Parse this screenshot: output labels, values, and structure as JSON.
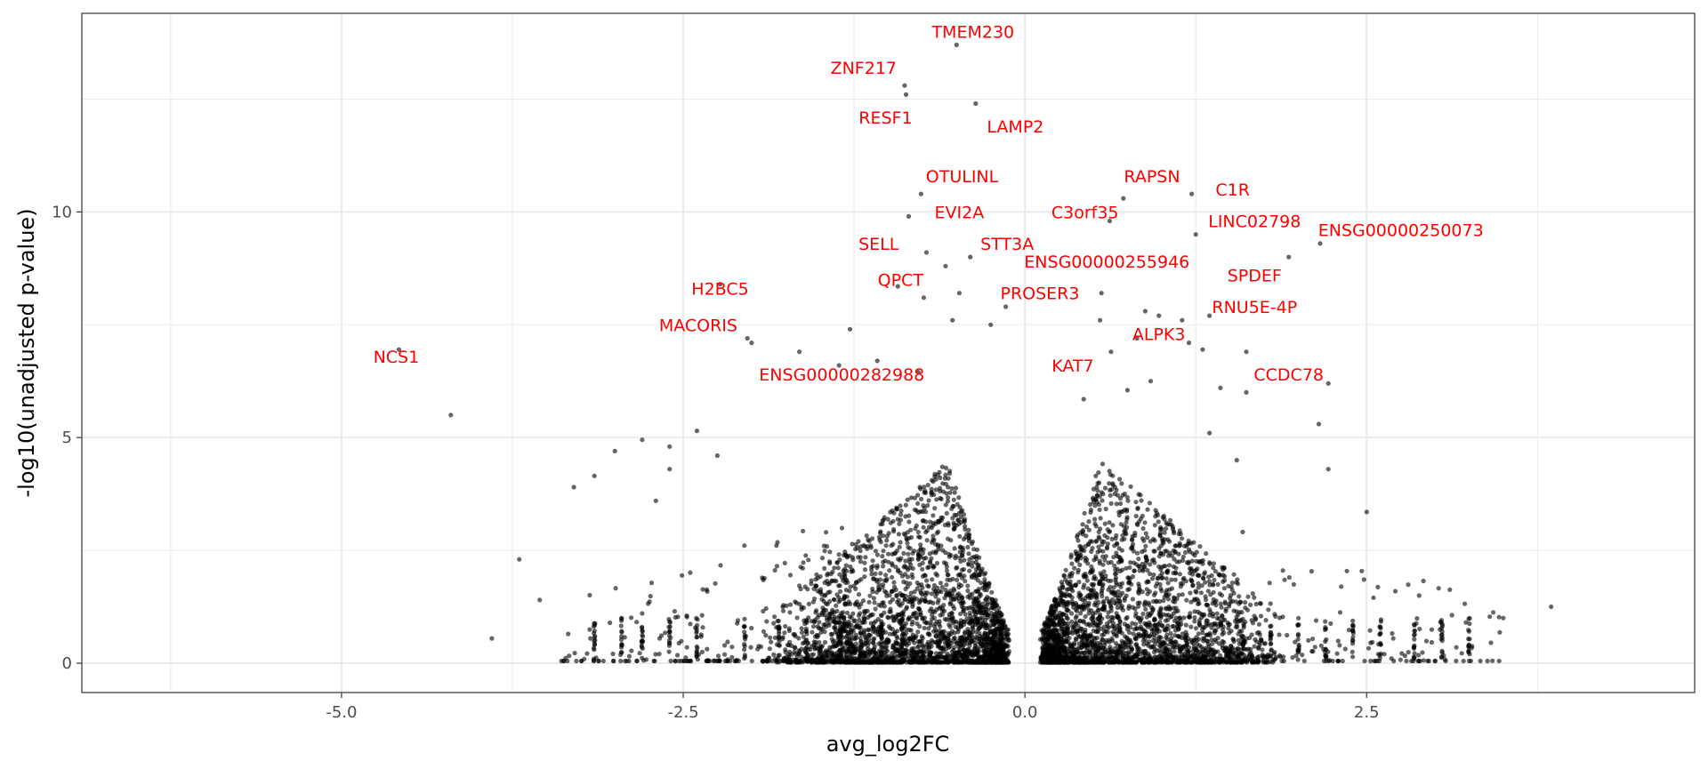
{
  "chart_data": {
    "type": "scatter",
    "title": "",
    "xlabel": "avg_log2FC",
    "ylabel": "-log10(unadjusted p-value)",
    "xlim": [
      -6.9,
      4.9
    ],
    "ylim": [
      -0.65,
      14.4
    ],
    "x_major_ticks": [
      -5.0,
      -2.5,
      0.0,
      2.5
    ],
    "x_tick_labels": [
      "-5.0",
      "-2.5",
      "0.0",
      "2.5"
    ],
    "x_minor_ticks": [
      -6.25,
      -3.75,
      -1.25,
      1.25,
      3.75
    ],
    "y_major_ticks": [
      0,
      5,
      10
    ],
    "y_tick_labels": [
      "0",
      "5",
      "10"
    ],
    "y_minor_ticks": [
      2.5,
      7.5,
      12.5
    ],
    "grid": true,
    "legend": "none",
    "colors": {
      "points": "#000000",
      "labels": "#ff0000",
      "grid": "#ebebeb",
      "panel_border": "#333333"
    },
    "point_opacity": 0.6,
    "labeled_genes": [
      {
        "gene": "TMEM230",
        "x": -0.5,
        "y": 13.7,
        "label_x": -0.38,
        "label_y": 14.0
      },
      {
        "gene": "ZNF217",
        "x": -0.88,
        "y": 12.8,
        "label_x": -1.18,
        "label_y": 13.2
      },
      {
        "gene": "RESF1",
        "x": -0.87,
        "y": 12.6,
        "label_x": -1.02,
        "label_y": 12.1
      },
      {
        "gene": "LAMP2",
        "x": -0.36,
        "y": 12.4,
        "label_x": -0.07,
        "label_y": 11.9
      },
      {
        "gene": "OTULINL",
        "x": -0.76,
        "y": 10.4,
        "label_x": -0.46,
        "label_y": 10.8
      },
      {
        "gene": "RAPSN",
        "x": 0.72,
        "y": 10.3,
        "label_x": 0.93,
        "label_y": 10.8
      },
      {
        "gene": "C1R",
        "x": 1.22,
        "y": 10.4,
        "label_x": 1.52,
        "label_y": 10.5
      },
      {
        "gene": "EVI2A",
        "x": -0.85,
        "y": 9.9,
        "label_x": -0.48,
        "label_y": 10.0
      },
      {
        "gene": "C3orf35",
        "x": 0.62,
        "y": 9.8,
        "label_x": 0.44,
        "label_y": 10.0
      },
      {
        "gene": "LINC02798",
        "x": 1.25,
        "y": 9.5,
        "label_x": 1.68,
        "label_y": 9.8
      },
      {
        "gene": "ENSG00000250073",
        "x": 2.16,
        "y": 9.3,
        "label_x": 2.75,
        "label_y": 9.6
      },
      {
        "gene": "SELL",
        "x": -0.72,
        "y": 9.1,
        "label_x": -1.07,
        "label_y": 9.3
      },
      {
        "gene": "STT3A",
        "x": -0.4,
        "y": 9.0,
        "label_x": -0.13,
        "label_y": 9.3
      },
      {
        "gene": "ENSG00000255946",
        "x": 0.56,
        "y": 8.2,
        "label_x": 0.6,
        "label_y": 8.9
      },
      {
        "gene": "SPDEF",
        "x": 1.93,
        "y": 9.0,
        "label_x": 1.68,
        "label_y": 8.6
      },
      {
        "gene": "QPCT",
        "x": -0.74,
        "y": 8.1,
        "label_x": -0.91,
        "label_y": 8.5
      },
      {
        "gene": "H2BC5",
        "x": -2.23,
        "y": 8.4,
        "label_x": -2.23,
        "label_y": 8.3
      },
      {
        "gene": "PROSER3",
        "x": -0.14,
        "y": 7.9,
        "label_x": 0.11,
        "label_y": 8.2
      },
      {
        "gene": "RNU5E-4P",
        "x": 1.35,
        "y": 7.7,
        "label_x": 1.68,
        "label_y": 7.9
      },
      {
        "gene": "MACORIS",
        "x": -2.03,
        "y": 7.2,
        "label_x": -2.39,
        "label_y": 7.5
      },
      {
        "gene": "ALPK3",
        "x": 0.82,
        "y": 7.2,
        "label_x": 0.98,
        "label_y": 7.3
      },
      {
        "gene": "NCS1",
        "x": -4.58,
        "y": 6.95,
        "label_x": -4.6,
        "label_y": 6.8
      },
      {
        "gene": "KAT7",
        "x": 0.63,
        "y": 6.9,
        "label_x": 0.35,
        "label_y": 6.6
      },
      {
        "gene": "CCDC78",
        "x": 1.62,
        "y": 6.9,
        "label_x": 1.93,
        "label_y": 6.4
      },
      {
        "gene": "ENSG00000282988",
        "x": -1.36,
        "y": 6.6,
        "label_x": -1.34,
        "label_y": 6.4
      }
    ],
    "outlier_points": [
      {
        "x": -4.2,
        "y": 5.5
      },
      {
        "x": -2.0,
        "y": 7.1
      },
      {
        "x": -1.28,
        "y": 7.4
      },
      {
        "x": -1.65,
        "y": 6.9
      },
      {
        "x": -0.93,
        "y": 8.35
      },
      {
        "x": -0.58,
        "y": 8.8
      },
      {
        "x": -0.48,
        "y": 8.2
      },
      {
        "x": -0.25,
        "y": 7.5
      },
      {
        "x": -0.53,
        "y": 7.6
      },
      {
        "x": 0.55,
        "y": 7.6
      },
      {
        "x": 0.88,
        "y": 7.8
      },
      {
        "x": 0.98,
        "y": 7.7
      },
      {
        "x": 1.15,
        "y": 7.6
      },
      {
        "x": 1.2,
        "y": 7.1
      },
      {
        "x": 1.3,
        "y": 6.95
      },
      {
        "x": 1.43,
        "y": 6.1
      },
      {
        "x": 1.62,
        "y": 6.0
      },
      {
        "x": 2.22,
        "y": 6.2
      },
      {
        "x": 2.15,
        "y": 5.3
      },
      {
        "x": 2.22,
        "y": 4.3
      },
      {
        "x": 2.5,
        "y": 3.35
      },
      {
        "x": -1.08,
        "y": 6.7
      },
      {
        "x": -0.78,
        "y": 6.45
      },
      {
        "x": 0.43,
        "y": 5.85
      },
      {
        "x": 0.75,
        "y": 6.05
      },
      {
        "x": 0.92,
        "y": 6.25
      },
      {
        "x": 1.35,
        "y": 5.1
      },
      {
        "x": 1.55,
        "y": 4.5
      },
      {
        "x": 3.85,
        "y": 1.25
      },
      {
        "x": 3.5,
        "y": 1.0
      },
      {
        "x": -3.7,
        "y": 2.3
      },
      {
        "x": -3.55,
        "y": 1.4
      },
      {
        "x": -3.9,
        "y": 0.55
      },
      {
        "x": -3.3,
        "y": 3.9
      },
      {
        "x": -3.15,
        "y": 4.15
      },
      {
        "x": -3.0,
        "y": 4.7
      },
      {
        "x": -2.8,
        "y": 4.95
      },
      {
        "x": -2.7,
        "y": 3.6
      },
      {
        "x": -2.6,
        "y": 4.3
      },
      {
        "x": -2.4,
        "y": 5.15
      },
      {
        "x": -2.6,
        "y": 4.8
      },
      {
        "x": -2.25,
        "y": 4.6
      }
    ],
    "dense_region": {
      "x_abs_min": 0.15,
      "x_abs_max": 1.25,
      "y_max_at_center": 4.5,
      "approx_points": 5200
    }
  }
}
